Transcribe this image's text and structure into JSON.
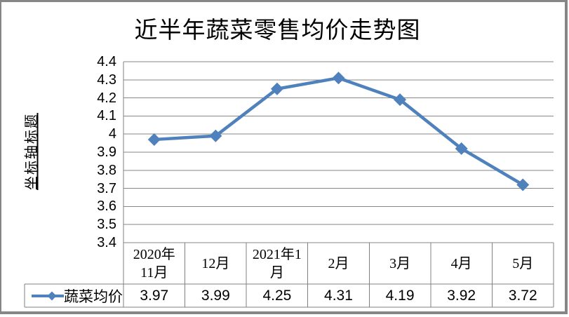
{
  "chart_data": {
    "type": "line",
    "title": "近半年蔬菜零售均价走势图",
    "ylabel": "坐标轴标题",
    "xlabel": "",
    "categories": [
      "2020年11月",
      "12月",
      "2021年1月",
      "2月",
      "3月",
      "4月",
      "5月"
    ],
    "category_display_lines": [
      [
        "2020年",
        "11月"
      ],
      [
        "12月"
      ],
      [
        "2021年1",
        "月"
      ],
      [
        "2月"
      ],
      [
        "3月"
      ],
      [
        "4月"
      ],
      [
        "5月"
      ]
    ],
    "series": [
      {
        "name": "蔬菜均价",
        "values": [
          3.97,
          3.99,
          4.25,
          4.31,
          4.19,
          3.92,
          3.72
        ],
        "color": "#4F81BD",
        "marker": "diamond"
      }
    ],
    "ylim": [
      3.4,
      4.4
    ],
    "ytick_labels": [
      "3.4",
      "3.5",
      "3.6",
      "3.7",
      "3.8",
      "3.9",
      "4",
      "4.1",
      "4.2",
      "4.3",
      "4.4"
    ],
    "value_format_decimals": 2,
    "grid": true,
    "legend_position": "bottom-left",
    "data_table": true
  },
  "colors": {
    "series_blue": "#4F81BD",
    "gridline": "#878787",
    "table_border": "#808080",
    "frame_border": "#868686",
    "text": "#000000",
    "background": "#FFFFFF"
  }
}
